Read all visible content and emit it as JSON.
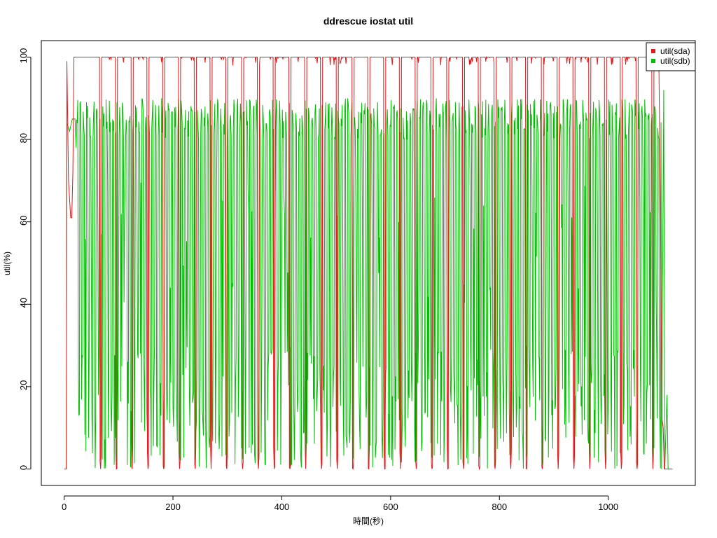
{
  "chart_data": {
    "type": "line",
    "title": "ddrescue iostat util",
    "xlabel": "時間(秒)",
    "ylabel": "util(%)",
    "xlim": [
      -42,
      1160
    ],
    "ylim": [
      -4,
      104
    ],
    "x_ticks": [
      0,
      200,
      400,
      600,
      800,
      1000
    ],
    "x_tick_labels": [
      "0",
      "200",
      "400",
      "600",
      "800",
      "1000"
    ],
    "y_ticks": [
      0,
      20,
      40,
      60,
      80,
      100
    ],
    "y_tick_labels": [
      "0",
      "20",
      "40",
      "60",
      "80",
      "100"
    ],
    "grid": false,
    "legend_position": "top-right",
    "sampling_interval_s": 1,
    "x_start": 0,
    "x_end": 1118,
    "cycle_period_s": 29.1,
    "series": [
      {
        "name": "util(sda)",
        "color": "#e41a1c",
        "description": "Mostly 100% with periodic dips to ~0 approximately every 29 s; starts at 0, jumps to ~98, drops to ~61 around t=10-12, returns to 100; ends near 10 then 0 after t≈1103",
        "baseline_value": 100,
        "dip_value": 0,
        "dip_times": [
          67,
          96,
          125,
          154,
          183,
          212,
          241,
          270,
          299,
          328,
          357,
          386,
          415,
          444,
          473,
          502,
          531,
          560,
          589,
          618,
          647,
          676,
          705,
          734,
          763,
          792,
          821,
          850,
          879,
          908,
          937,
          966,
          995,
          1024,
          1053,
          1082
        ],
        "start_segment": [
          [
            0,
            0
          ],
          [
            4,
            0
          ],
          [
            5,
            99
          ],
          [
            8,
            70
          ],
          [
            12,
            61
          ],
          [
            14,
            61
          ],
          [
            16,
            72
          ],
          [
            18,
            100
          ],
          [
            22,
            100
          ]
        ],
        "end_segment": [
          [
            1093,
            100
          ],
          [
            1096,
            60
          ],
          [
            1099,
            12
          ],
          [
            1101,
            10
          ],
          [
            1103,
            0
          ],
          [
            1118,
            0
          ]
        ]
      },
      {
        "name": "util(sdb)",
        "color": "#00bf00",
        "description": "Rapid oscillation between roughly 0-25% lows and 80-90% highs throughout the run, ending at 0 after t≈1105 with a final spike near 92",
        "low_range": [
          0,
          30
        ],
        "high_range": [
          80,
          90
        ],
        "oscillation_period_s": 6,
        "start_segment": [
          [
            0,
            0
          ],
          [
            4,
            0
          ],
          [
            5,
            84
          ],
          [
            10,
            82
          ],
          [
            15,
            85
          ],
          [
            20,
            85
          ],
          [
            22,
            78
          ]
        ],
        "end_segment": [
          [
            1098,
            0
          ],
          [
            1102,
            92
          ],
          [
            1104,
            0
          ],
          [
            1108,
            18
          ],
          [
            1110,
            0
          ],
          [
            1118,
            0
          ]
        ]
      }
    ]
  }
}
